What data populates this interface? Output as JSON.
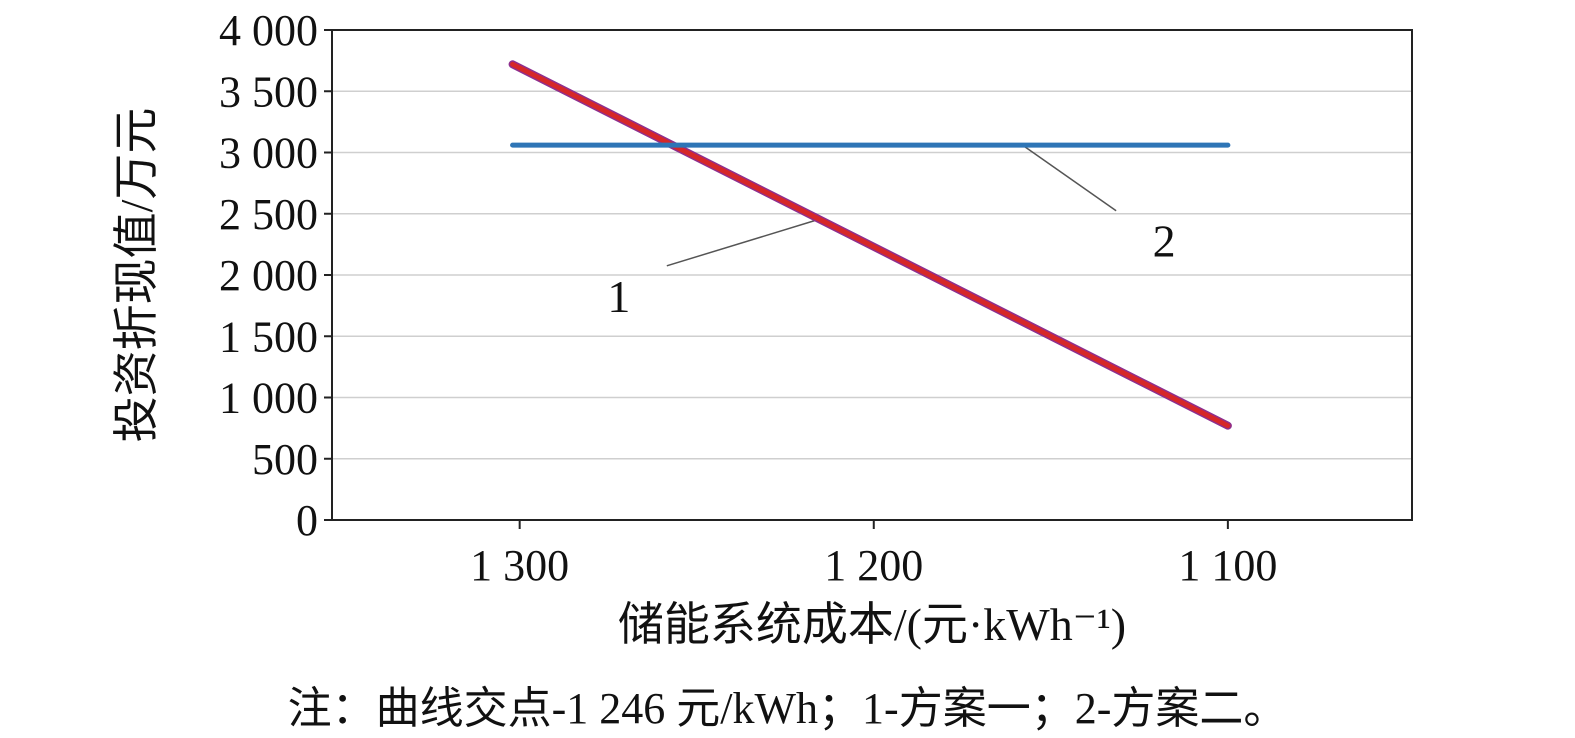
{
  "chart_data": {
    "type": "line",
    "xlabel": "储能系统成本/(元·kWh⁻¹)",
    "ylabel": "投资折现值/万元",
    "x_ticks": [
      1300,
      1200,
      1100
    ],
    "x_tick_labels": [
      "1 300",
      "1 200",
      "1 100"
    ],
    "xlim": [
      1353,
      1048
    ],
    "ylim": [
      0,
      4000
    ],
    "y_ticks": [
      0,
      500,
      1000,
      1500,
      2000,
      2500,
      3000,
      3500,
      4000
    ],
    "y_tick_labels": [
      "0",
      "500",
      "1 000",
      "1 500",
      "2 000",
      "2 500",
      "3 000",
      "3 500",
      "4 000"
    ],
    "grid": "horizontal",
    "series": [
      {
        "name": "1",
        "color": "#d62728",
        "x": [
          1302,
          1100
        ],
        "y": [
          3720,
          770
        ]
      },
      {
        "name": "2",
        "color": "#2e75b6",
        "x": [
          1302,
          1100
        ],
        "y": [
          3060,
          3060
        ]
      }
    ],
    "annotations": [
      {
        "text": "1",
        "series": "1",
        "point": [
          1216,
          2450
        ],
        "label_at": [
          1272,
          1830
        ]
      },
      {
        "text": "2",
        "series": "2",
        "point": [
          1158,
          3060
        ],
        "label_at": [
          1118,
          2280
        ]
      }
    ]
  },
  "note": "注：曲线交点-1 246 元/kWh；1-方案一；2-方案二。"
}
